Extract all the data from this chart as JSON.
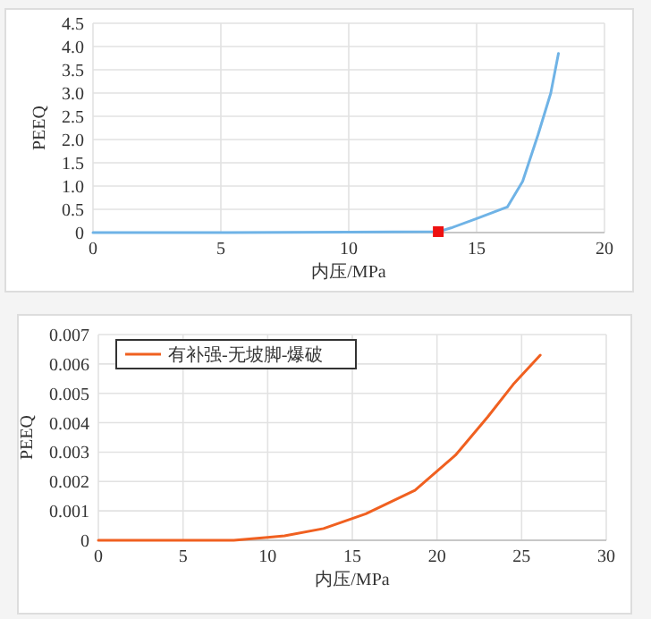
{
  "chart_data": [
    {
      "type": "line",
      "xlabel": "内压/MPa",
      "ylabel": "PEEQ",
      "xlim": [
        0,
        20
      ],
      "xticks": [
        0,
        5,
        10,
        15,
        20
      ],
      "ylim": [
        0,
        4.5
      ],
      "yticks": [
        0,
        {
          "value": 0.5,
          "label": "0.5"
        },
        {
          "value": 1,
          "label": "1.0"
        },
        {
          "value": 1.5,
          "label": "1.5"
        },
        {
          "value": 2,
          "label": "2.0"
        },
        {
          "value": 2.5,
          "label": "2.5"
        },
        {
          "value": 3,
          "label": "3.0"
        },
        {
          "value": 3.5,
          "label": "3.5"
        },
        {
          "value": 4,
          "label": "4.0"
        },
        {
          "value": 4.5,
          "label": "4.5"
        }
      ],
      "grid": true,
      "legend": false,
      "series": [
        {
          "color": "#6fb3e6",
          "x": [
            0,
            5,
            10,
            13.5,
            14,
            15,
            16.2,
            16.8,
            17.4,
            17.9,
            18.2
          ],
          "values": [
            0,
            0,
            0.01,
            0.02,
            0.1,
            0.3,
            0.55,
            1.1,
            2.1,
            3.0,
            3.85
          ]
        },
        {
          "type": "scatter",
          "marker": "square",
          "color": "#ee1111",
          "x": [
            13.5
          ],
          "values": [
            0.02
          ]
        }
      ]
    },
    {
      "type": "line",
      "xlabel": "内压/MPa",
      "ylabel": "PEEQ",
      "xlim": [
        0,
        30
      ],
      "xticks": [
        0,
        5,
        10,
        15,
        20,
        25,
        30
      ],
      "ylim": [
        0,
        0.007
      ],
      "yticks": [
        0,
        0.001,
        0.002,
        0.003,
        0.004,
        0.005,
        0.006,
        0.007
      ],
      "grid": true,
      "legend": "top left",
      "series": [
        {
          "name": "有补强-无坡脚-爆破",
          "color": "#f06020",
          "x": [
            0,
            5,
            8,
            10,
            11,
            13.3,
            15.8,
            18.7,
            21.1,
            23,
            24.5,
            26.1
          ],
          "values": [
            0,
            0,
            0,
            0.0001,
            0.00015,
            0.0004,
            0.0009,
            0.0017,
            0.0029,
            0.0042,
            0.0053,
            0.0063
          ]
        }
      ]
    }
  ]
}
